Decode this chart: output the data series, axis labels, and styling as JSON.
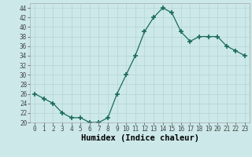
{
  "x": [
    0,
    1,
    2,
    3,
    4,
    5,
    6,
    7,
    8,
    9,
    10,
    11,
    12,
    13,
    14,
    15,
    16,
    17,
    18,
    19,
    20,
    21,
    22,
    23
  ],
  "y": [
    26,
    25,
    24,
    22,
    21,
    21,
    20,
    20,
    21,
    26,
    30,
    34,
    39,
    42,
    44,
    43,
    39,
    37,
    38,
    38,
    38,
    36,
    35,
    34
  ],
  "xlabel": "Humidex (Indice chaleur)",
  "ylim": [
    20,
    45
  ],
  "xlim": [
    -0.5,
    23.5
  ],
  "yticks": [
    20,
    22,
    24,
    26,
    28,
    30,
    32,
    34,
    36,
    38,
    40,
    42,
    44
  ],
  "xticks": [
    0,
    1,
    2,
    3,
    4,
    5,
    6,
    7,
    8,
    9,
    10,
    11,
    12,
    13,
    14,
    15,
    16,
    17,
    18,
    19,
    20,
    21,
    22,
    23
  ],
  "line_color": "#1a6b5a",
  "marker_color": "#1a6b5a",
  "bg_color": "#cce8e8",
  "grid_color": "#b8d8d8",
  "tick_fontsize": 5.5,
  "xlabel_fontsize": 7.5,
  "xlabel_fontweight": "bold"
}
